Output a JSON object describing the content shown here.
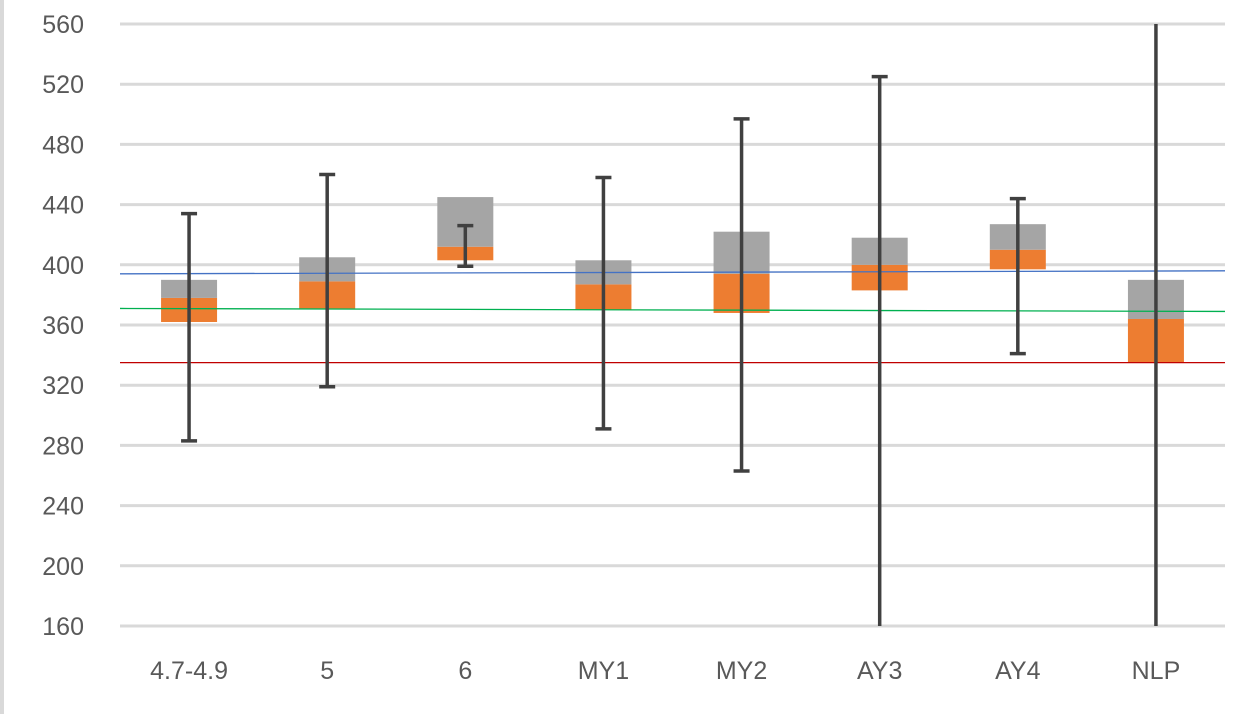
{
  "chart_data": {
    "type": "bar",
    "subtype": "stacked-box-with-whiskers",
    "title": "",
    "xlabel": "",
    "ylabel": "",
    "ylim": [
      160,
      560
    ],
    "yticks": [
      160,
      200,
      240,
      280,
      320,
      360,
      400,
      440,
      480,
      520,
      560
    ],
    "grid": true,
    "legend": "none",
    "categories": [
      "4.7-4.9",
      "5",
      "6",
      "MY1",
      "MY2",
      "AY3",
      "AY4",
      "NLP"
    ],
    "series": [
      {
        "color": "#ed7d31",
        "lower": [
          362,
          371,
          403,
          370,
          368,
          383,
          397,
          335
        ],
        "upper": [
          378,
          389,
          412,
          387,
          394,
          400,
          410,
          364
        ]
      },
      {
        "color": "#a5a5a5",
        "lower": [
          378,
          389,
          412,
          387,
          394,
          400,
          410,
          364
        ],
        "upper": [
          390,
          405,
          445,
          403,
          422,
          418,
          427,
          390
        ]
      }
    ],
    "whiskers": {
      "color": "#404040",
      "low": [
        283,
        319,
        399,
        291,
        263,
        160,
        341,
        160
      ],
      "high": [
        434,
        460,
        426,
        458,
        497,
        525,
        444,
        560
      ]
    },
    "reference_lines": [
      {
        "color": "#4472c4",
        "y_start": 394,
        "y_end": 396
      },
      {
        "color": "#00b050",
        "y_start": 371,
        "y_end": 369
      },
      {
        "color": "#c00000",
        "y_start": 335,
        "y_end": 335
      }
    ]
  }
}
